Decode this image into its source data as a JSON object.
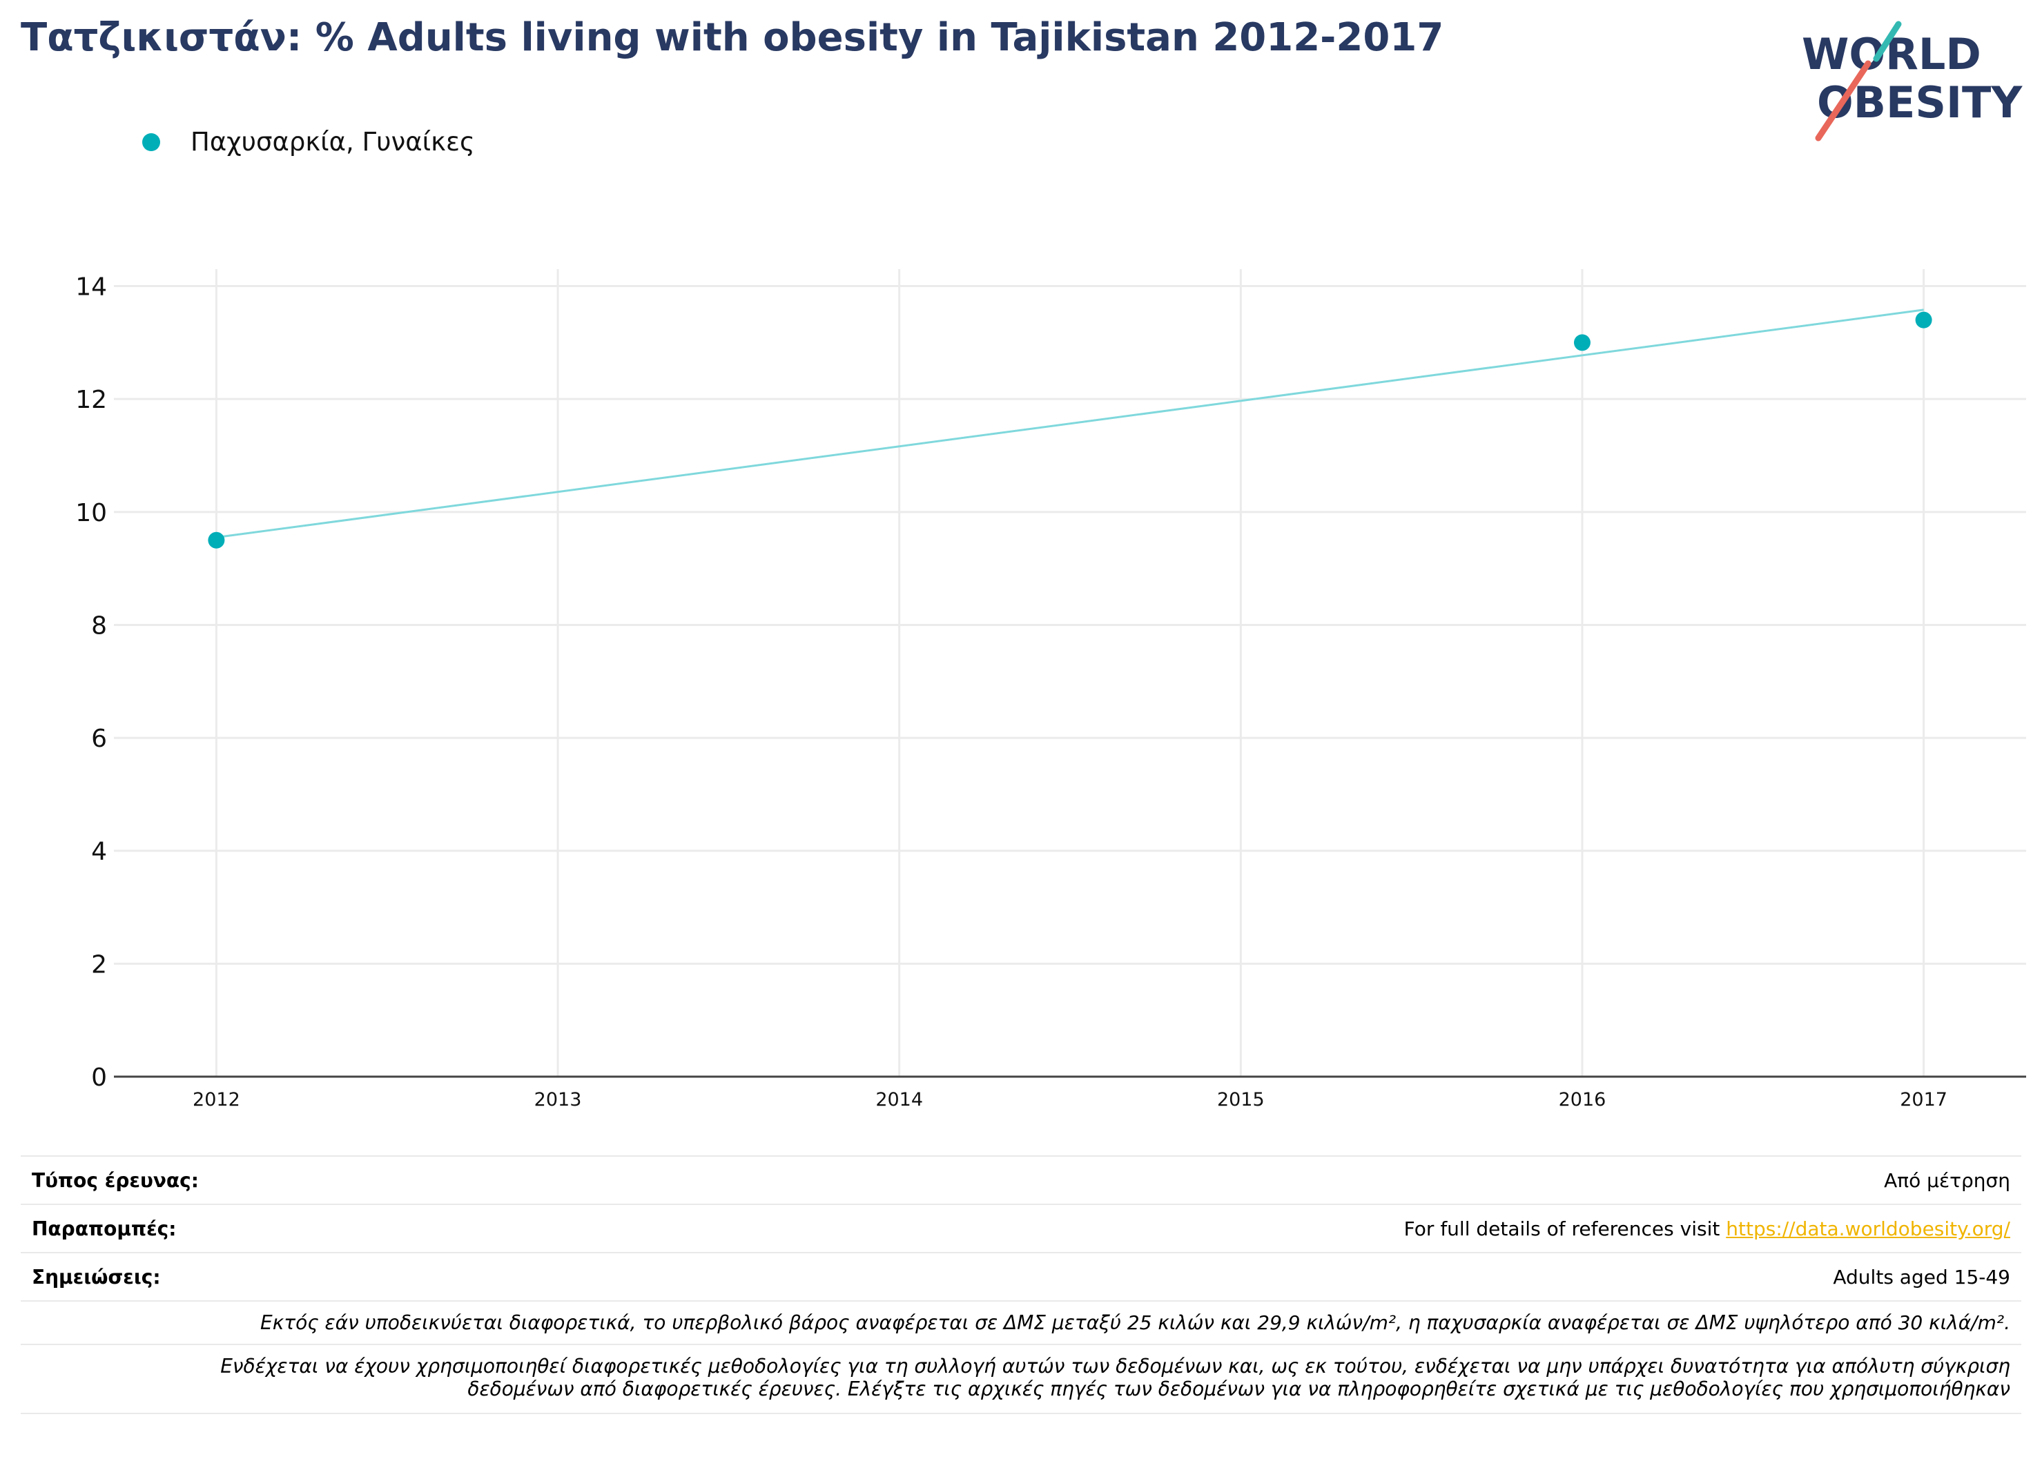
{
  "title": "Τατζικιστάν: % Adults living with obesity in Tajikistan 2012-2017",
  "logo": {
    "line1": "WORLD",
    "line2": "OBESITY"
  },
  "colors": {
    "title": "#283962",
    "series": "#00aeb8",
    "trend": "#7fd8dc",
    "link": "#f0b400",
    "grid": "#ebebeb"
  },
  "chart_data": {
    "type": "scatter",
    "x_ticks": [
      "2012",
      "2013",
      "2014",
      "2015",
      "2016",
      "2017"
    ],
    "y_ticks": [
      "0",
      "2",
      "4",
      "6",
      "8",
      "10",
      "12",
      "14"
    ],
    "ylim": [
      0,
      14.3
    ],
    "xlim": [
      2011.7,
      2017.3
    ],
    "grid": true,
    "legend_position": "top-left",
    "series": [
      {
        "name": "Παχυσαρκία, Γυναίκες",
        "x": [
          2012,
          2016,
          2017
        ],
        "y": [
          9.5,
          13.0,
          13.4
        ],
        "trendline": {
          "x": [
            2012,
            2017
          ],
          "y": [
            9.55,
            13.58
          ]
        }
      }
    ]
  },
  "info": {
    "survey_type": {
      "label": "Τύπος έρευνας:",
      "value": "Από μέτρηση"
    },
    "references": {
      "label": "Παραπομπές:",
      "text": "For full details of references visit ",
      "link": "https://data.worldobesity.org/"
    },
    "notes": {
      "label": "Σημειώσεις:",
      "value": "Adults aged 15-49"
    },
    "note1": "Εκτός εάν υποδεικνύεται διαφορετικά, το υπερβολικό βάρος αναφέρεται σε ΔΜΣ μεταξύ 25 κιλών και 29,9 κιλών/m², η παχυσαρκία αναφέρεται σε ΔΜΣ υψηλότερο από 30 κιλά/m².",
    "note2_line1": "Ενδέχεται να έχουν χρησιμοποιηθεί διαφορετικές μεθοδολογίες για τη συλλογή αυτών των δεδομένων και, ως εκ τούτου, ενδέχεται να μην υπάρχει δυνατότητα για απόλυτη σύγκριση",
    "note2_line2": "δεδομένων από διαφορετικές έρευνες. Ελέγξτε τις αρχικές πηγές των δεδομένων για να πληροφορηθείτε σχετικά με τις μεθοδολογίες που χρησιμοποιήθηκαν"
  }
}
